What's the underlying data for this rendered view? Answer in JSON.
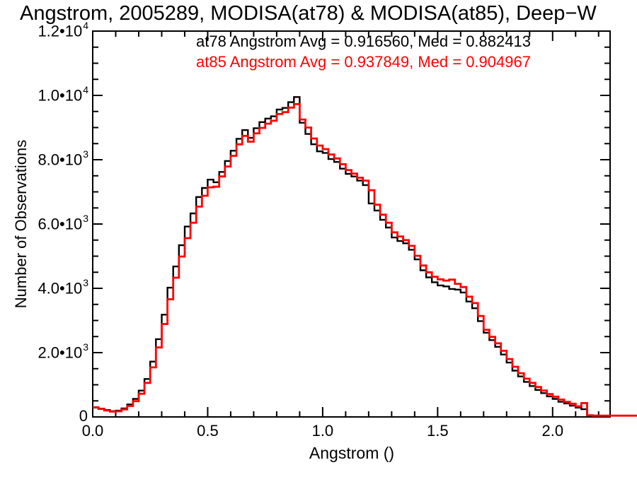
{
  "header": {
    "title": "Angstrom, 2005289, MODISA(at78) & MODISA(at85), Deep−W"
  },
  "legend": {
    "line1": "at78 Angstrom Avg = 0.916560, Med = 0.882413",
    "line2": "at85 Angstrom Avg = 0.937849, Med = 0.904967"
  },
  "colors": {
    "at78": "#000000",
    "at85": "#ff0000",
    "axis": "#000000",
    "background": "#ffffff"
  },
  "chart_data": {
    "type": "line",
    "subtype": "step-histogram",
    "title": "Angstrom, 2005289, MODISA(at78) & MODISA(at85), Deep-W",
    "xlabel": "Angstrom ()",
    "ylabel": "Number of Observations",
    "xlim": [
      0,
      2.25
    ],
    "ylim": [
      0,
      12000
    ],
    "bin_width": 0.025,
    "legend_position": "top-center-inside",
    "grid": false,
    "stats": {
      "at78_avg": "0.916560",
      "at78_med": "0.882413",
      "at85_avg": "0.937849",
      "at85_med": "0.904967"
    },
    "xticks": {
      "major": [
        {
          "value": 0.0,
          "label": "0.0"
        },
        {
          "value": 0.5,
          "label": "0.5"
        },
        {
          "value": 1.0,
          "label": "1.0"
        },
        {
          "value": 1.5,
          "label": "1.5"
        },
        {
          "value": 2.0,
          "label": "2.0"
        }
      ],
      "minor_step": 0.1
    },
    "yticks": {
      "major": [
        {
          "value": 0,
          "label": "0",
          "exp": null
        },
        {
          "value": 2000,
          "label": "2.0•10",
          "exp": "3"
        },
        {
          "value": 4000,
          "label": "4.0•10",
          "exp": "3"
        },
        {
          "value": 6000,
          "label": "6.0•10",
          "exp": "3"
        },
        {
          "value": 8000,
          "label": "8.0•10",
          "exp": "3"
        },
        {
          "value": 10000,
          "label": "1.0•10",
          "exp": "4"
        },
        {
          "value": 12000,
          "label": "1.2•10",
          "exp": "4"
        }
      ],
      "minor_step": 500
    },
    "series": [
      {
        "name": "at78",
        "color": "#000000",
        "extend_right": false,
        "values": [
          290,
          260,
          215,
          180,
          195,
          265,
          390,
          560,
          820,
          1180,
          1720,
          2420,
          3180,
          4020,
          4680,
          5340,
          5920,
          6330,
          6840,
          7120,
          7380,
          7300,
          7620,
          7960,
          8280,
          8650,
          8920,
          8680,
          8980,
          9170,
          9280,
          9350,
          9560,
          9610,
          9790,
          9950,
          9150,
          8800,
          8480,
          8260,
          8210,
          8020,
          7930,
          7720,
          7560,
          7480,
          7350,
          7210,
          6640,
          6420,
          6130,
          5890,
          5580,
          5470,
          5400,
          5200,
          4900,
          4560,
          4340,
          4190,
          4090,
          4060,
          3980,
          3960,
          3870,
          3590,
          3380,
          2980,
          2620,
          2390,
          2180,
          1940,
          1690,
          1440,
          1260,
          1090,
          960,
          840,
          740,
          640,
          560,
          470,
          420,
          350,
          290,
          240,
          30,
          20,
          15,
          10
        ]
      },
      {
        "name": "at85",
        "color": "#ff0000",
        "extend_right": true,
        "values": [
          300,
          250,
          200,
          165,
          175,
          235,
          340,
          490,
          720,
          1060,
          1540,
          2160,
          2890,
          3660,
          4330,
          4990,
          5560,
          6040,
          6540,
          6880,
          7140,
          7160,
          7480,
          7790,
          8120,
          8480,
          8740,
          8560,
          8820,
          8990,
          9120,
          9210,
          9420,
          9480,
          9620,
          9730,
          9250,
          9000,
          8660,
          8440,
          8330,
          8160,
          8040,
          7860,
          7680,
          7570,
          7440,
          7350,
          7050,
          6600,
          6290,
          6040,
          5740,
          5610,
          5500,
          5320,
          5010,
          4710,
          4500,
          4360,
          4280,
          4240,
          4270,
          4140,
          4040,
          3740,
          3540,
          3140,
          2710,
          2490,
          2290,
          2060,
          1800,
          1560,
          1360,
          1190,
          1060,
          930,
          820,
          710,
          630,
          540,
          470,
          410,
          330,
          430,
          50,
          40,
          40,
          40
        ]
      }
    ]
  }
}
